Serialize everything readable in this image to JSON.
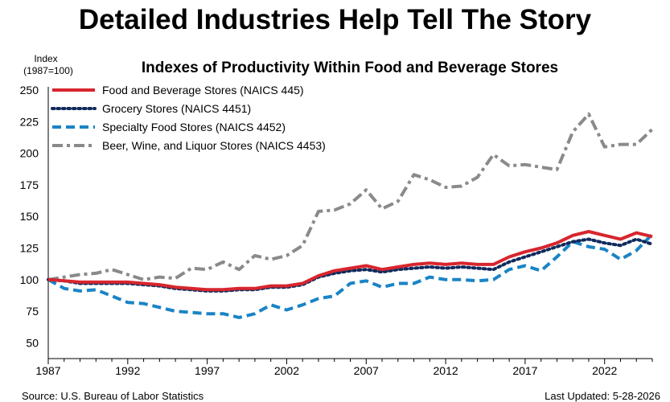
{
  "header": {
    "title": "Detailed Industries Help Tell The Story"
  },
  "footer": {
    "source": "Source: U.S. Bureau of Labor Statistics",
    "updated": "Last Updated: 5-28-2026"
  },
  "colors": {
    "food_beverage": "#d7262e",
    "grocery": "#102a5c",
    "specialty": "#1a84c6",
    "beer_wine_liquor": "#8a8a8a",
    "axis": "#000000"
  },
  "chart_data": {
    "type": "line",
    "title": "Indexes of Productivity Within Food and Beverage Stores",
    "ylabel": "Index",
    "ylabel_sub": "(1987=100)",
    "xlabel": "",
    "ylim": [
      37.5,
      250
    ],
    "yticks": [
      50,
      75,
      100,
      125,
      150,
      175,
      200,
      225,
      250
    ],
    "xlim": [
      1987,
      2025
    ],
    "xticks": [
      1987,
      1992,
      1997,
      2002,
      2007,
      2012,
      2017,
      2022
    ],
    "grid": false,
    "legend_position": "top-left",
    "x": [
      1987,
      1988,
      1989,
      1990,
      1991,
      1992,
      1993,
      1994,
      1995,
      1996,
      1997,
      1998,
      1999,
      2000,
      2001,
      2002,
      2003,
      2004,
      2005,
      2006,
      2007,
      2008,
      2009,
      2010,
      2011,
      2012,
      2013,
      2014,
      2015,
      2016,
      2017,
      2018,
      2019,
      2020,
      2021,
      2022,
      2023,
      2024,
      2025
    ],
    "series": [
      {
        "name": "Food and Beverage Stores (NAICS 445)",
        "style": "solid",
        "values": [
          100,
          99,
          98,
          98,
          98,
          98,
          97,
          96,
          94,
          93,
          92,
          92,
          93,
          93,
          95,
          95,
          97,
          103,
          107,
          109,
          111,
          108,
          110,
          112,
          113,
          112,
          113,
          112,
          112,
          118,
          122,
          125,
          129,
          135,
          138,
          135,
          132,
          137,
          134
        ]
      },
      {
        "name": "Grocery Stores (NAICS 4451)",
        "style": "dotted",
        "values": [
          100,
          99,
          97,
          97,
          97,
          97,
          96,
          95,
          93,
          92,
          91,
          91,
          92,
          92,
          94,
          94,
          96,
          102,
          105,
          107,
          108,
          106,
          108,
          109,
          110,
          109,
          110,
          109,
          108,
          114,
          118,
          122,
          126,
          130,
          132,
          129,
          127,
          132,
          128
        ]
      },
      {
        "name": "Specialty Food Stores (NAICS 4452)",
        "style": "dashed",
        "values": [
          100,
          93,
          91,
          92,
          87,
          82,
          81,
          78,
          75,
          74,
          73,
          73,
          70,
          73,
          80,
          76,
          80,
          85,
          87,
          97,
          99,
          94,
          97,
          97,
          102,
          100,
          100,
          99,
          100,
          108,
          111,
          107,
          118,
          130,
          126,
          124,
          116,
          123,
          136
        ]
      },
      {
        "name": "Beer, Wine, and Liquor Stores (NAICS 4453)",
        "style": "dashdot",
        "values": [
          100,
          102,
          104,
          105,
          108,
          104,
          100,
          102,
          101,
          109,
          108,
          114,
          108,
          119,
          116,
          119,
          127,
          154,
          155,
          160,
          171,
          156,
          162,
          183,
          179,
          173,
          174,
          181,
          199,
          190,
          191,
          189,
          187,
          217,
          231,
          205,
          207,
          207,
          219
        ]
      }
    ]
  }
}
